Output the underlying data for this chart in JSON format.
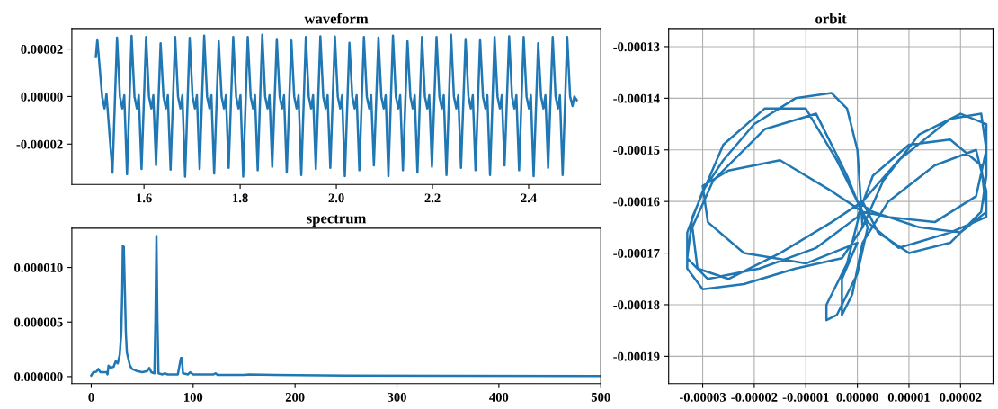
{
  "chart_data": [
    {
      "type": "line",
      "title": "waveform",
      "xlim": [
        1.45,
        2.55
      ],
      "ylim": [
        -3.7e-05,
        2.86e-05
      ],
      "xticks": [
        1.6,
        1.8,
        {
          "value": 2,
          "label": "2.0"
        },
        2.2,
        2.4
      ],
      "yticks": [
        {
          "value": -2e-05,
          "label": "-0.00002"
        },
        {
          "value": 0,
          "label": "0.00000"
        },
        {
          "value": 2e-05,
          "label": "0.00002"
        }
      ],
      "grid": false,
      "series": [
        {
          "color": "#1f77b4",
          "x": [
            1.5,
            1.503,
            1.513,
            1.518,
            1.522,
            1.5345,
            1.544,
            1.55,
            1.555,
            1.559,
            1.5647,
            1.5742,
            1.5802,
            1.5852,
            1.5892,
            1.5949,
            1.6044,
            1.6104,
            1.6154,
            1.6194,
            1.6251,
            1.6346,
            1.6406,
            1.6456,
            1.6496,
            1.6553,
            1.6648,
            1.6708,
            1.6758,
            1.6798,
            1.6855,
            1.695,
            1.701,
            1.706,
            1.71,
            1.7157,
            1.7252,
            1.7312,
            1.7362,
            1.7402,
            1.7459,
            1.7554,
            1.7614,
            1.7664,
            1.7704,
            1.7761,
            1.7856,
            1.7916,
            1.7966,
            1.8006,
            1.8063,
            1.8158,
            1.8218,
            1.8268,
            1.8308,
            1.8365,
            1.846,
            1.852,
            1.857,
            1.861,
            1.8667,
            1.8762,
            1.8822,
            1.8872,
            1.8912,
            1.8969,
            1.9064,
            1.9124,
            1.9174,
            1.9214,
            1.9271,
            1.9366,
            1.9426,
            1.9476,
            1.9516,
            1.9573,
            1.9668,
            1.9728,
            1.9778,
            1.9818,
            1.9875,
            1.997,
            2.003,
            2.008,
            2.012,
            2.0177,
            2.0272,
            2.0332,
            2.0382,
            2.0422,
            2.0479,
            2.0574,
            2.0634,
            2.0684,
            2.0724,
            2.0781,
            2.0876,
            2.0936,
            2.0986,
            2.1026,
            2.1083,
            2.1178,
            2.1238,
            2.1288,
            2.1328,
            2.1385,
            2.148,
            2.154,
            2.159,
            2.163,
            2.1687,
            2.1782,
            2.1842,
            2.1892,
            2.1932,
            2.1989,
            2.2084,
            2.2144,
            2.2194,
            2.2234,
            2.2291,
            2.2386,
            2.2446,
            2.2496,
            2.2536,
            2.2593,
            2.2688,
            2.2748,
            2.2798,
            2.2838,
            2.2895,
            2.299,
            2.305,
            2.31,
            2.314,
            2.3197,
            2.3292,
            2.3352,
            2.3402,
            2.3442,
            2.3499,
            2.3594,
            2.3654,
            2.3704,
            2.3744,
            2.3801,
            2.3896,
            2.3956,
            2.4006,
            2.4046,
            2.4103,
            2.4198,
            2.4258,
            2.4308,
            2.4348,
            2.4405,
            2.45,
            2.456,
            2.461,
            2.465,
            2.4707,
            2.4802,
            2.4862,
            2.4912,
            2.495,
            2.5
          ],
          "values": [
            1.7e-05,
            2.4e-05,
            0.0,
            -5e-06,
            1e-06,
            -3.21e-05,
            2.48e-05,
            0.0,
            -5e-06,
            5e-07,
            -3.27e-05,
            2.55e-05,
            0.0,
            -5e-06,
            5e-07,
            -3.05e-05,
            2.5e-05,
            0.0,
            -5e-06,
            5e-07,
            -2.89e-05,
            2.24e-05,
            0.0,
            -5e-06,
            5e-07,
            -3.08e-05,
            2.5e-05,
            0.0,
            -5e-06,
            5e-07,
            -3.37e-05,
            2.47e-05,
            0.0,
            -5e-06,
            5e-07,
            -3.05e-05,
            2.56e-05,
            0.0,
            -5e-06,
            5e-07,
            -3.24e-05,
            2.32e-05,
            0.0,
            -5e-06,
            5e-07,
            -3e-05,
            2.5e-05,
            0.0,
            -5e-06,
            5e-07,
            -3.37e-05,
            2.5e-05,
            0.0,
            -5e-06,
            5e-07,
            -3.1e-05,
            2.6e-05,
            0.0,
            -5e-06,
            5e-07,
            -2.95e-05,
            2.42e-05,
            0.0,
            -5e-06,
            5e-07,
            -3.2e-05,
            2.39e-05,
            0.0,
            -5e-06,
            5e-07,
            -3.3e-05,
            2.5e-05,
            0.0,
            -5e-06,
            5e-07,
            -3.05e-05,
            2.53e-05,
            0.0,
            -5e-06,
            5e-07,
            -3e-05,
            2.52e-05,
            0.0,
            -5e-06,
            5e-07,
            -3.35e-05,
            2.26e-05,
            0.0,
            -5e-06,
            5e-07,
            -3.1e-05,
            2.5e-05,
            0.0,
            -5e-06,
            5e-07,
            -2.9e-05,
            2.48e-05,
            0.0,
            -5e-06,
            5e-07,
            -3.35e-05,
            2.56e-05,
            0.0,
            -5e-06,
            5e-07,
            -3.1e-05,
            2.32e-05,
            0.0,
            -5e-06,
            5e-07,
            -3.2e-05,
            2.5e-05,
            0.0,
            -5e-06,
            5e-07,
            -2.95e-05,
            2.5e-05,
            0.0,
            -5e-06,
            5e-07,
            -3.3e-05,
            2.6e-05,
            0.0,
            -5e-06,
            5e-07,
            -3e-05,
            2.42e-05,
            0.0,
            -5e-06,
            5e-07,
            -3.1e-05,
            2.4e-05,
            0.0,
            -5e-06,
            5e-07,
            -3.3e-05,
            2.5e-05,
            0.0,
            -5e-06,
            5e-07,
            -2.9e-05,
            2.53e-05,
            0.0,
            -5e-06,
            5e-07,
            -3.1e-05,
            2.5e-05,
            0.0,
            -5e-06,
            5e-07,
            -3.35e-05,
            2.24e-05,
            0.0,
            -5e-06,
            5e-07,
            -3e-05,
            2.5e-05,
            0.0,
            -5e-06,
            5e-07,
            -3.3e-05,
            2.5e-05,
            0.0,
            -4e-06,
            0.0,
            -1.5e-06
          ]
        }
      ]
    },
    {
      "type": "line",
      "title": "spectrum",
      "xlim": [
        -19,
        500
      ],
      "ylim": [
        -6.5e-07,
        1.36e-05
      ],
      "xticks": [
        0,
        100,
        200,
        300,
        400,
        500
      ],
      "yticks": [
        {
          "value": 0,
          "label": "0.000000"
        },
        {
          "value": 5e-06,
          "label": "0.000005"
        },
        {
          "value": 1e-05,
          "label": "0.000010"
        }
      ],
      "grid": false,
      "series": [
        {
          "color": "#1f77b4",
          "x": [
            0,
            2,
            5,
            7,
            9,
            15,
            16,
            17,
            19,
            22,
            24,
            26,
            28,
            29.5,
            30.5,
            31,
            32,
            33,
            34,
            35,
            38,
            40,
            45,
            50,
            55,
            57,
            59,
            62,
            63,
            64,
            65,
            66,
            70,
            72,
            75,
            85,
            88,
            89,
            90,
            95,
            97,
            100,
            120,
            122,
            124,
            150,
            155,
            180,
            250,
            350,
            500
          ],
          "values": [
            1e-07,
            4e-07,
            4.5e-07,
            7e-07,
            4e-07,
            4e-07,
            2e-07,
            1e-06,
            8e-07,
            9e-07,
            1.4e-06,
            1.2e-06,
            2e-06,
            4e-06,
            8e-06,
            1.2e-05,
            1.19e-05,
            8e-06,
            4e-06,
            2.2e-06,
            1e-06,
            7e-07,
            5e-07,
            4e-07,
            5e-07,
            8e-07,
            4e-07,
            3e-07,
            5e-06,
            1.29e-05,
            5e-06,
            3e-07,
            2e-07,
            3e-07,
            2e-07,
            2e-07,
            1.7e-06,
            1.7e-06,
            3e-07,
            2e-07,
            4e-07,
            2e-07,
            2e-07,
            3e-07,
            1.5e-07,
            1.5e-07,
            2e-07,
            1.5e-07,
            1e-07,
            8e-08,
            5e-08
          ]
        }
      ]
    },
    {
      "type": "line",
      "title": "orbit",
      "xlim": [
        -3.66e-05,
        2.63e-05
      ],
      "ylim": [
        -0.0001953,
        -0.0001265
      ],
      "xticks": [
        {
          "value": -3e-05,
          "label": "-0.00003"
        },
        {
          "value": -2e-05,
          "label": "-0.00002"
        },
        {
          "value": -1e-05,
          "label": "-0.00001"
        },
        {
          "value": 0,
          "label": "0.00000"
        },
        {
          "value": 1e-05,
          "label": "0.00001"
        },
        {
          "value": 2e-05,
          "label": "0.00002"
        }
      ],
      "yticks": [
        {
          "value": -0.00019,
          "label": "-0.00019"
        },
        {
          "value": -0.00018,
          "label": "-0.00018"
        },
        {
          "value": -0.00017,
          "label": "-0.00017"
        },
        {
          "value": -0.00016,
          "label": "-0.00016"
        },
        {
          "value": -0.00015,
          "label": "-0.00015"
        },
        {
          "value": -0.00014,
          "label": "-0.00014"
        },
        {
          "value": -0.00013,
          "label": "-0.00013"
        }
      ],
      "grid": true,
      "series": [
        {
          "color": "#1f77b4",
          "x": [
            1e-06,
            0.0,
            -2e-06,
            -5e-06,
            -1.2e-05,
            -2e-05,
            -2.6e-05,
            -3e-05,
            -3.3e-05,
            -3.3e-05,
            -3e-05,
            -2.2e-05,
            -1.2e-05,
            -3e-06,
            1e-06,
            5e-06,
            1.2e-05,
            2e-05,
            2.5e-05,
            2.5e-05,
            2.4e-05,
            1.8e-05,
            1e-05,
            4e-06,
            1e-06,
            -2e-06,
            -6e-06,
            -6e-06,
            -4e-06,
            0.0,
            2e-06,
            -2e-06,
            -8e-06,
            -1.8e-05,
            -2.8e-05,
            -3.2e-05,
            -3.1e-05,
            -2.5e-05,
            -1.5e-05,
            -5e-06,
            1e-06,
            8e-06,
            1.8e-05,
            2.4e-05,
            2.5e-05,
            2.3e-05,
            1.5e-05,
            6e-06,
            1e-06,
            -5e-06,
            -1.5e-05,
            -2.5e-05,
            -3e-05,
            -2.9e-05,
            -2.2e-05,
            -1e-05,
            0.0,
            -3e-06,
            -3e-06,
            -1e-06,
            1e-06,
            6e-06,
            1.5e-05,
            2.3e-05,
            2.5e-05,
            2.5e-05,
            1.8e-05,
            8e-06,
            2e-06,
            -4e-06,
            -1e-05,
            -1.8e-05,
            -2.6e-05,
            -3.2e-05,
            -3.3e-05,
            -2.9e-05,
            -1.9e-05,
            -8e-06,
            0.0,
            3e-06,
            1e-05,
            1.8e-05,
            2.4e-05,
            2.5e-05,
            2e-05,
            1.2e-05,
            3e-06,
            0.0
          ],
          "values": [
            -0.000165,
            -0.00015,
            -0.000142,
            -0.000139,
            -0.00014,
            -0.000145,
            -0.000152,
            -0.000158,
            -0.000166,
            -0.000173,
            -0.000177,
            -0.000176,
            -0.000173,
            -0.000171,
            -0.000165,
            -0.000156,
            -0.000147,
            -0.000143,
            -0.000145,
            -0.000155,
            -0.000162,
            -0.000168,
            -0.00017,
            -0.000166,
            -0.00016,
            -0.000172,
            -0.00018,
            -0.000183,
            -0.000182,
            -0.000174,
            -0.000165,
            -0.000155,
            -0.000143,
            -0.000146,
            -0.000156,
            -0.000165,
            -0.000173,
            -0.000175,
            -0.00017,
            -0.000164,
            -0.00016,
            -0.000152,
            -0.000144,
            -0.000143,
            -0.00015,
            -0.000159,
            -0.000164,
            -0.000163,
            -0.000162,
            -0.000158,
            -0.000152,
            -0.000154,
            -0.000157,
            -0.000164,
            -0.00017,
            -0.000172,
            -0.000168,
            -0.000175,
            -0.000182,
            -0.000178,
            -0.000168,
            -0.00016,
            -0.000153,
            -0.00015,
            -0.000158,
            -0.000163,
            -0.000166,
            -0.000169,
            -0.000164,
            -0.000152,
            -0.000142,
            -0.000142,
            -0.000149,
            -0.000163,
            -0.000171,
            -0.000175,
            -0.000173,
            -0.000169,
            -0.000163,
            -0.000155,
            -0.000149,
            -0.000148,
            -0.000153,
            -0.000162,
            -0.000166,
            -0.000165,
            -0.000162,
            -0.00016
          ]
        }
      ]
    }
  ]
}
